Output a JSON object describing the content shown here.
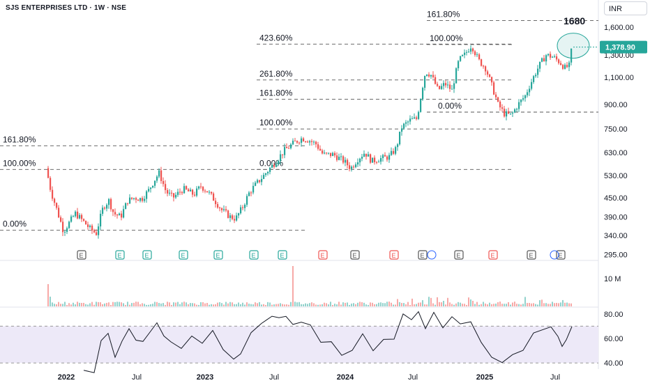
{
  "header": {
    "title": "SJS ENTERPRISES LTD · 1W · NSE",
    "currency": "INR"
  },
  "colors": {
    "up": "#26a69a",
    "down": "#ef5350",
    "grid_line": "#555555",
    "rsi_band": "#ede9f8",
    "text": "#131722"
  },
  "chart_data": [
    {
      "type": "candlestick",
      "title": "SJS ENTERPRISES LTD · 1W · NSE",
      "yscale": "log",
      "ylim": [
        285,
        1820
      ],
      "y_ticks": [
        "1,600.00",
        "1,300.00",
        "1,100.00",
        "900.00",
        "750.00",
        "630.00",
        "530.00",
        "450.00",
        "390.00",
        "340.00",
        "295.00"
      ],
      "x_ticks": [
        "2022",
        "Jul",
        "2023",
        "Jul",
        "2024",
        "Jul",
        "2025",
        "Jul"
      ],
      "last_price": "1,378.90",
      "target_label": "1680",
      "fib_levels": [
        {
          "label": "161.80%",
          "price": 662
        },
        {
          "label": "100.00%",
          "price": 555
        },
        {
          "label": "0.00%",
          "price": 353
        },
        {
          "label": "423.60%",
          "price": 1410
        },
        {
          "label": "261.80%",
          "price": 1080
        },
        {
          "label": "161.80%",
          "price": 935
        },
        {
          "label": "100.00%",
          "price": 750
        },
        {
          "label": "0.00%",
          "price": 555
        },
        {
          "label": "161.80%",
          "price": 1680
        },
        {
          "label": "100.00%",
          "price": 1405
        },
        {
          "label": "0.00%",
          "price": 850
        }
      ],
      "earnings_markers": [
        "E",
        "E",
        "E",
        "E",
        "E",
        "E",
        "E",
        "E",
        "E",
        "E",
        "E",
        "E",
        "E",
        "E",
        "E"
      ]
    },
    {
      "type": "bar",
      "name": "volume",
      "y_ticks": [
        "10 M"
      ]
    },
    {
      "type": "line",
      "name": "rsi",
      "ylim": [
        35,
        85
      ],
      "y_ticks": [
        "80.00",
        "60.00",
        "40.00"
      ],
      "bands": [
        70,
        40
      ]
    }
  ]
}
